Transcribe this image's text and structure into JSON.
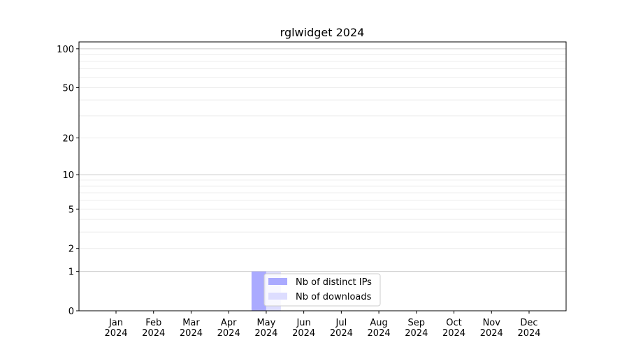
{
  "chart_data": {
    "type": "bar",
    "title": "rglwidget 2024",
    "xlabel": "",
    "ylabel": "",
    "y_scale": "log(1+y)",
    "ylim": [
      0,
      113
    ],
    "yticks": [
      0,
      1,
      2,
      5,
      10,
      20,
      50,
      100
    ],
    "grid": true,
    "legend_position": "lower-center",
    "categories": [
      "Jan\n2024",
      "Feb\n2024",
      "Mar\n2024",
      "Apr\n2024",
      "May\n2024",
      "Jun\n2024",
      "Jul\n2024",
      "Aug\n2024",
      "Sep\n2024",
      "Oct\n2024",
      "Nov\n2024",
      "Dec\n2024"
    ],
    "series": [
      {
        "name": "Nb of distinct IPs",
        "color": "#aaaaff",
        "values": [
          0,
          0,
          0,
          0,
          1,
          0,
          0,
          0,
          0,
          0,
          0,
          0
        ]
      },
      {
        "name": "Nb of downloads",
        "color": "#ddddff",
        "values": [
          0,
          0,
          0,
          0,
          1,
          0,
          0,
          0,
          0,
          0,
          0,
          0
        ]
      }
    ]
  }
}
